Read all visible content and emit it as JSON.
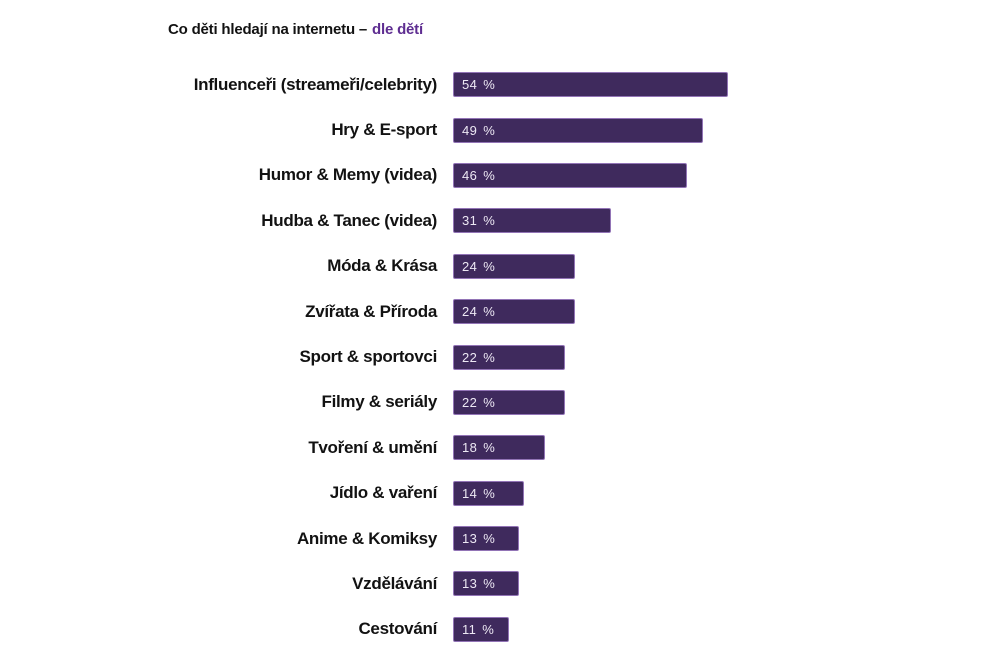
{
  "title": {
    "main": "Co děti hledají na internetu –",
    "highlight": "dle dětí"
  },
  "colors": {
    "bar_fill": "#3f2a5d",
    "bar_border": "#9274b6",
    "value_text": "#ede8f4",
    "title_text": "#121212",
    "title_highlight": "#5e2d91",
    "label_text": "#121212",
    "page_bg": "#ffffff"
  },
  "chart_data": {
    "type": "bar",
    "orientation": "horizontal",
    "title": "Co děti hledají na internetu – dle dětí",
    "categories": [
      "Influenceři (streameři/celebrity)",
      "Hry & E-sport",
      "Humor & Memy (videa)",
      "Hudba & Tanec (videa)",
      "Móda & Krása",
      "Zvířata & Příroda",
      "Sport & sportovci",
      "Filmy & seriály",
      "Tvoření & umění",
      "Jídlo & vaření",
      "Anime & Komiksy",
      "Vzdělávání",
      "Cestování"
    ],
    "values": [
      54,
      49,
      46,
      31,
      24,
      24,
      22,
      22,
      18,
      14,
      13,
      13,
      11
    ],
    "value_suffix": "%",
    "value_labels_position": "inside-bar-left",
    "xlabel": "",
    "ylabel": "",
    "xlim": [
      0,
      54
    ],
    "axis_visible": false,
    "grid": false,
    "legend": "none"
  }
}
